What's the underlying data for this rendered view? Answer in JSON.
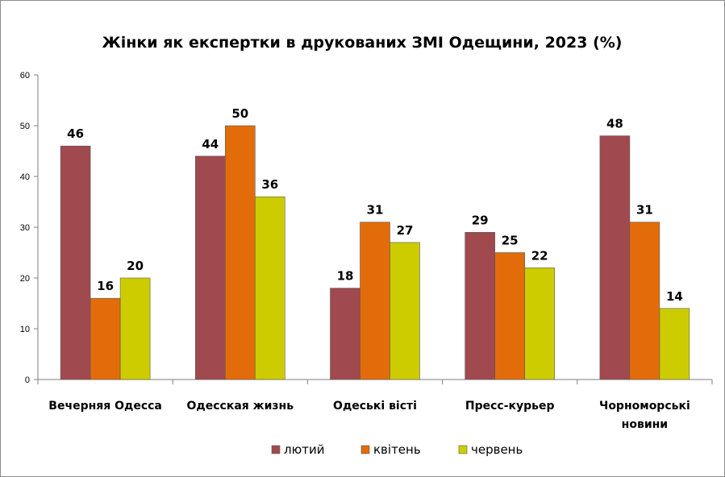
{
  "chart_data": {
    "type": "bar",
    "title": "Жінки як експертки в друкованих ЗМІ Одещини, 2023 (%)",
    "categories": [
      "Вечерняя Одесса",
      "Одесская жизнь",
      "Одеські вісті",
      "Пресс-курьер",
      "Чорноморські новини"
    ],
    "category_lines": [
      [
        "Вечерняя Одесса"
      ],
      [
        "Одесская жизнь"
      ],
      [
        "Одеські вісті"
      ],
      [
        "Пресс-курьер"
      ],
      [
        "Чорноморські",
        "новини"
      ]
    ],
    "series": [
      {
        "name": "лютий",
        "color": "#A0494F",
        "values": [
          46,
          44,
          18,
          29,
          48
        ]
      },
      {
        "name": "квітень",
        "color": "#E36C0A",
        "values": [
          16,
          50,
          31,
          25,
          31
        ]
      },
      {
        "name": "червень",
        "color": "#CCCC00",
        "values": [
          20,
          36,
          27,
          22,
          14
        ]
      }
    ],
    "ylim": [
      0,
      60
    ],
    "yticks": [
      0,
      10,
      20,
      30,
      40,
      50,
      60
    ],
    "grid": false,
    "legend_position": "bottom",
    "data_labels": true
  }
}
